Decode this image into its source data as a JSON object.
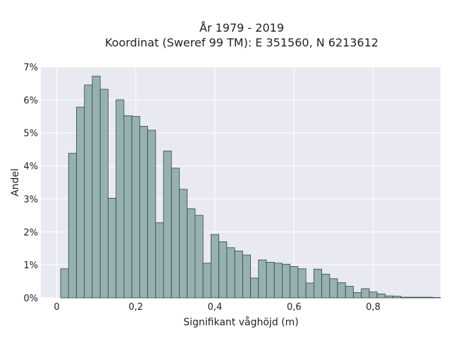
{
  "chart_data": {
    "type": "bar",
    "title_line1": "År 1979 - 2019",
    "title_line2": "Koordinat (Sweref 99 TM): E 351560, N 6213612",
    "xlabel": "Signifikant våghöjd (m)",
    "ylabel": "Andel",
    "xlim": [
      -0.04,
      0.97
    ],
    "ylim": [
      0,
      7
    ],
    "x_ticks": [
      {
        "value": 0,
        "label": "0"
      },
      {
        "value": 0.2,
        "label": "0,2"
      },
      {
        "value": 0.4,
        "label": "0,4"
      },
      {
        "value": 0.6,
        "label": "0,6"
      },
      {
        "value": 0.8,
        "label": "0,8"
      }
    ],
    "y_ticks": [
      {
        "value": 0,
        "label": "0%"
      },
      {
        "value": 1,
        "label": "1%"
      },
      {
        "value": 2,
        "label": "2%"
      },
      {
        "value": 3,
        "label": "3%"
      },
      {
        "value": 4,
        "label": "4%"
      },
      {
        "value": 5,
        "label": "5%"
      },
      {
        "value": 6,
        "label": "6%"
      },
      {
        "value": 7,
        "label": "7%"
      }
    ],
    "bin_width": 0.02,
    "bin_start": 0.01,
    "values": [
      0.88,
      4.38,
      5.78,
      6.45,
      6.72,
      6.32,
      3.02,
      6.0,
      5.52,
      5.5,
      5.2,
      5.08,
      2.28,
      4.45,
      3.93,
      3.29,
      2.7,
      2.5,
      1.05,
      1.92,
      1.7,
      1.52,
      1.42,
      1.3,
      0.6,
      1.15,
      1.08,
      1.05,
      1.02,
      0.95,
      0.88,
      0.45,
      0.87,
      0.72,
      0.58,
      0.46,
      0.35,
      0.16,
      0.28,
      0.18,
      0.12,
      0.06,
      0.05,
      0.02,
      0.02,
      0.02,
      0.02,
      0.01
    ],
    "bar_color": "#97b1b1",
    "edge_color": "#2f4545",
    "plot_background": "#e9e9f1",
    "grid": true,
    "legend": "none"
  }
}
